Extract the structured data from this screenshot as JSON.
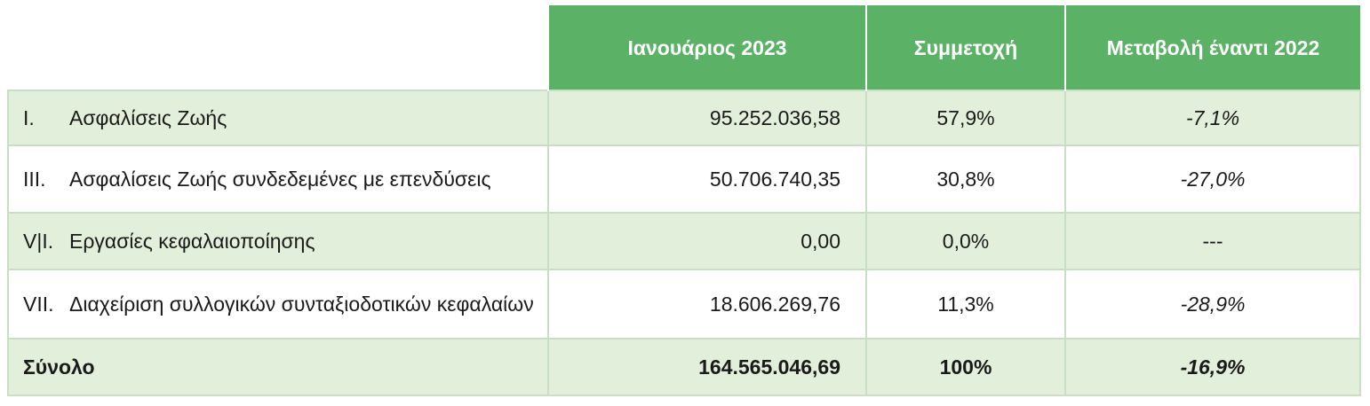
{
  "header": {
    "col_month": "Ιανουάριος 2023",
    "col_share": "Συμμετοχή",
    "col_change": "Μεταβολή έναντι 2022"
  },
  "rows": [
    {
      "roman": "I.",
      "label": "Ασφαλίσεις Ζωής",
      "amount": "95.252.036,58",
      "share": "57,9%",
      "change": "-7,1%"
    },
    {
      "roman": "III.",
      "label": "Ασφαλίσεις Ζωής συνδεδεμένες με επενδύσεις",
      "amount": "50.706.740,35",
      "share": "30,8%",
      "change": "-27,0%"
    },
    {
      "roman": "V|I.",
      "label": "Εργασίες κεφαλαιοποίησης",
      "amount": "0,00",
      "share": "0,0%",
      "change": "---"
    },
    {
      "roman": "VII.",
      "label": "Διαχείριση συλλογικών συνταξιοδοτικών κεφαλαίων",
      "amount": "18.606.269,76",
      "share": "11,3%",
      "change": "-28,9%"
    }
  ],
  "total": {
    "label": "Σύνολο",
    "amount": "164.565.046,69",
    "share": "100%",
    "change": "-16,9%"
  },
  "colors": {
    "header_green": "#5bb266",
    "band_green": "#e2efda",
    "border_green": "#c9dfc5"
  }
}
